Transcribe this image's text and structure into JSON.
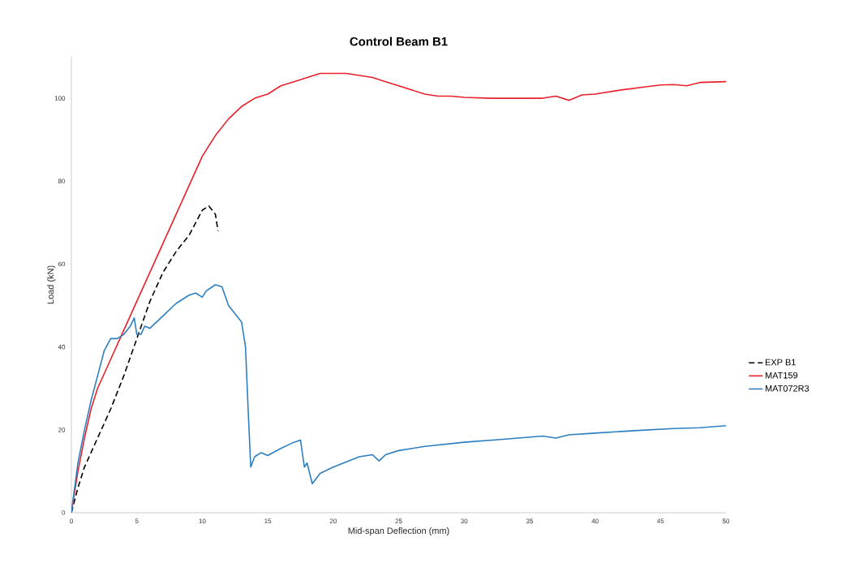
{
  "chart_data": {
    "type": "line",
    "title": "Control Beam B1",
    "xlabel": "Mid-span Deflection (mm)",
    "ylabel": "Load (kN)",
    "xlim": [
      0,
      50
    ],
    "ylim": [
      0,
      110
    ],
    "xticks": [
      0,
      5,
      10,
      15,
      20,
      25,
      30,
      35,
      40,
      45,
      50
    ],
    "yticks": [
      0,
      20,
      40,
      60,
      80,
      100
    ],
    "grid": false,
    "legend": "right",
    "marker": "none",
    "series": [
      {
        "name": "EXP B1",
        "color": "#000000",
        "line_style": "dashed",
        "x": [
          0,
          0.5,
          1,
          2,
          3,
          4,
          5,
          6,
          7,
          8,
          9,
          9.5,
          10,
          10.5,
          11,
          11.2
        ],
        "values": [
          0,
          6,
          11,
          18,
          25,
          33,
          42,
          51,
          58,
          63,
          67,
          70,
          73,
          74,
          72,
          68
        ]
      },
      {
        "name": "MAT159",
        "color": "#e8202a",
        "line_style": "solid",
        "x": [
          0,
          0.5,
          1,
          1.5,
          2,
          3,
          4,
          5,
          6,
          7,
          8,
          9,
          10,
          11,
          12,
          13,
          14,
          15,
          16,
          17,
          18,
          19,
          20,
          21,
          22,
          23,
          24,
          25,
          26,
          27,
          28,
          29,
          30,
          32,
          34,
          36,
          37,
          38,
          39,
          40,
          42,
          44,
          45,
          46,
          47,
          48,
          50
        ],
        "values": [
          0,
          10,
          18,
          25,
          30,
          37,
          44,
          51,
          58,
          65,
          72,
          79,
          86,
          91,
          95,
          98,
          100,
          101,
          103,
          104,
          105,
          106,
          106,
          106,
          105.5,
          105,
          104,
          103,
          102,
          101,
          100.5,
          100.5,
          100.2,
          100,
          100,
          100,
          100.5,
          99.5,
          100.8,
          101,
          102,
          102.8,
          103.2,
          103.3,
          103,
          103.8,
          104
        ]
      },
      {
        "name": "MAT072R3",
        "color": "#2e7fc0",
        "line_style": "solid",
        "x": [
          0,
          0.5,
          1,
          1.5,
          2,
          2.5,
          3,
          3.5,
          4,
          4.5,
          4.8,
          5,
          5.3,
          5.6,
          6,
          7,
          8,
          9,
          9.5,
          10,
          10.3,
          11,
          11.5,
          12,
          12.5,
          13,
          13.3,
          13.5,
          13.7,
          14,
          14.5,
          15,
          16,
          17,
          17.5,
          17.8,
          18,
          18.4,
          19,
          20,
          22,
          23,
          23.5,
          24,
          25,
          27,
          30,
          33,
          36,
          37,
          38,
          40,
          43,
          46,
          48,
          50
        ],
        "values": [
          0,
          12,
          20,
          27,
          33,
          39,
          42,
          42,
          43,
          45,
          47,
          43,
          43,
          45,
          44.5,
          47.5,
          50.5,
          52.5,
          53,
          52,
          53.5,
          55,
          54.5,
          50,
          48,
          46,
          40,
          25,
          11,
          13.5,
          14.5,
          13.8,
          15.5,
          17,
          17.5,
          11,
          12,
          7,
          9.5,
          11,
          13.5,
          14,
          12.5,
          14,
          15,
          16,
          17,
          17.7,
          18.5,
          18,
          18.8,
          19.2,
          19.8,
          20.3,
          20.5,
          21
        ]
      }
    ]
  }
}
